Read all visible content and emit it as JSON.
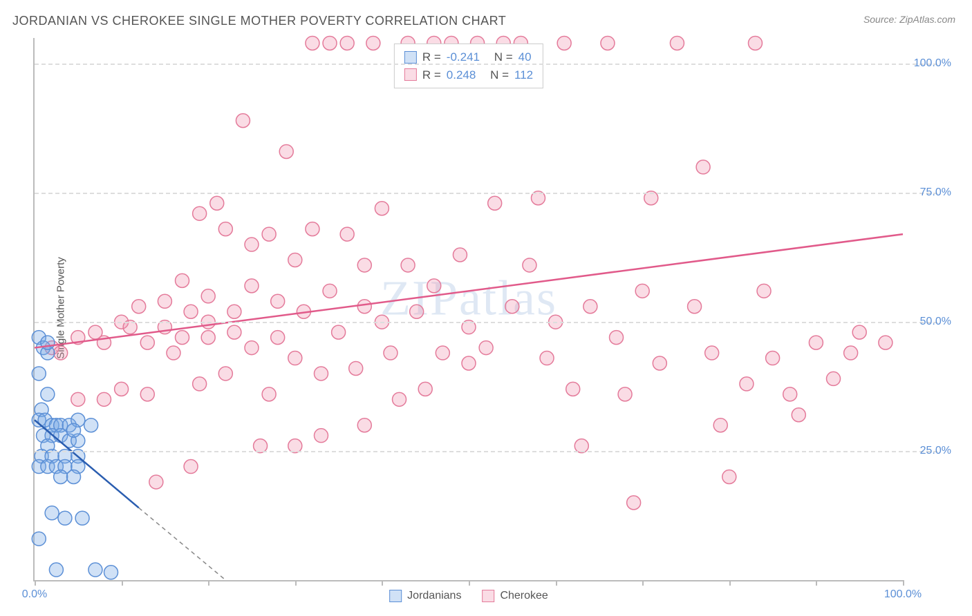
{
  "title": "JORDANIAN VS CHEROKEE SINGLE MOTHER POVERTY CORRELATION CHART",
  "source": "Source: ZipAtlas.com",
  "ylabel": "Single Mother Poverty",
  "watermark": "ZIPatlas",
  "chart": {
    "type": "scatter",
    "xlim": [
      0,
      100
    ],
    "ylim": [
      0,
      105
    ],
    "xticks": [
      0,
      10,
      20,
      30,
      40,
      50,
      60,
      70,
      80,
      90,
      100
    ],
    "xtick_labels": {
      "0": "0.0%",
      "100": "100.0%"
    },
    "yticks": [
      25,
      50,
      75,
      100
    ],
    "ytick_labels": [
      "25.0%",
      "50.0%",
      "75.0%",
      "100.0%"
    ],
    "background_color": "#ffffff",
    "grid_color": "#dddddd",
    "axis_color": "#bbbbbb",
    "tick_text_color": "#5b8fd6",
    "marker_radius": 10,
    "marker_stroke_width": 1.5,
    "line_width": 2.5
  },
  "series": {
    "jordanian": {
      "label": "Jordanians",
      "R": "-0.241",
      "N": "40",
      "fill": "rgba(120, 170, 230, 0.35)",
      "stroke": "#5b8fd6",
      "line_color": "#2a5db0",
      "trend": {
        "x1": 0,
        "y1": 31,
        "x2": 12,
        "y2": 14
      },
      "trend_ext": {
        "x1": 12,
        "y1": 14,
        "x2": 22,
        "y2": 0
      },
      "points": [
        [
          0.5,
          47
        ],
        [
          0.5,
          40
        ],
        [
          1,
          45
        ],
        [
          1.5,
          44
        ],
        [
          1.5,
          36
        ],
        [
          0.8,
          33
        ],
        [
          0.5,
          31
        ],
        [
          1.2,
          31
        ],
        [
          2.0,
          30
        ],
        [
          2.5,
          30
        ],
        [
          3.0,
          30
        ],
        [
          4.0,
          30
        ],
        [
          5.0,
          31
        ],
        [
          6.5,
          30
        ],
        [
          1.0,
          28
        ],
        [
          2.0,
          28
        ],
        [
          3.0,
          28
        ],
        [
          4.0,
          27
        ],
        [
          5.0,
          27
        ],
        [
          1.5,
          26
        ],
        [
          0.8,
          24
        ],
        [
          2.0,
          24
        ],
        [
          3.5,
          24
        ],
        [
          5.0,
          24
        ],
        [
          0.5,
          22
        ],
        [
          1.5,
          22
        ],
        [
          2.5,
          22
        ],
        [
          3.5,
          22
        ],
        [
          5.0,
          22
        ],
        [
          3.0,
          20
        ],
        [
          4.5,
          20
        ],
        [
          2.0,
          13
        ],
        [
          3.5,
          12
        ],
        [
          5.5,
          12
        ],
        [
          0.5,
          8
        ],
        [
          7.0,
          2
        ],
        [
          2.5,
          2
        ],
        [
          8.8,
          1.5
        ],
        [
          1.5,
          46
        ],
        [
          4.5,
          29
        ]
      ]
    },
    "cherokee": {
      "label": "Cherokee",
      "R": "0.248",
      "N": "112",
      "fill": "rgba(240, 140, 170, 0.3)",
      "stroke": "#e47a9a",
      "line_color": "#e15a8a",
      "trend": {
        "x1": 0,
        "y1": 45,
        "x2": 100,
        "y2": 67
      },
      "points": [
        [
          2,
          45
        ],
        [
          3,
          44
        ],
        [
          5,
          47
        ],
        [
          5,
          35
        ],
        [
          7,
          48
        ],
        [
          8,
          46
        ],
        [
          8,
          35
        ],
        [
          10,
          50
        ],
        [
          10,
          37
        ],
        [
          11,
          49
        ],
        [
          12,
          53
        ],
        [
          13,
          46
        ],
        [
          13,
          36
        ],
        [
          14,
          19
        ],
        [
          15,
          54
        ],
        [
          15,
          49
        ],
        [
          16,
          44
        ],
        [
          17,
          58
        ],
        [
          17,
          47
        ],
        [
          18,
          52
        ],
        [
          18,
          22
        ],
        [
          19,
          71
        ],
        [
          19,
          38
        ],
        [
          20,
          55
        ],
        [
          20,
          50
        ],
        [
          20,
          47
        ],
        [
          21,
          73
        ],
        [
          22,
          68
        ],
        [
          22,
          40
        ],
        [
          23,
          52
        ],
        [
          23,
          48
        ],
        [
          24,
          89
        ],
        [
          25,
          65
        ],
        [
          25,
          57
        ],
        [
          25,
          45
        ],
        [
          26,
          26
        ],
        [
          27,
          67
        ],
        [
          27,
          36
        ],
        [
          28,
          54
        ],
        [
          28,
          47
        ],
        [
          29,
          83
        ],
        [
          30,
          62
        ],
        [
          30,
          43
        ],
        [
          30,
          26
        ],
        [
          31,
          52
        ],
        [
          32,
          104
        ],
        [
          32,
          68
        ],
        [
          33,
          40
        ],
        [
          33,
          28
        ],
        [
          34,
          104
        ],
        [
          34,
          56
        ],
        [
          35,
          48
        ],
        [
          36,
          104
        ],
        [
          36,
          67
        ],
        [
          37,
          41
        ],
        [
          38,
          61
        ],
        [
          38,
          53
        ],
        [
          38,
          30
        ],
        [
          39,
          104
        ],
        [
          40,
          50
        ],
        [
          40,
          72
        ],
        [
          41,
          44
        ],
        [
          42,
          35
        ],
        [
          43,
          104
        ],
        [
          43,
          61
        ],
        [
          44,
          52
        ],
        [
          45,
          37
        ],
        [
          46,
          104
        ],
        [
          46,
          57
        ],
        [
          47,
          44
        ],
        [
          48,
          104
        ],
        [
          49,
          63
        ],
        [
          50,
          49
        ],
        [
          50,
          42
        ],
        [
          51,
          104
        ],
        [
          52,
          45
        ],
        [
          53,
          73
        ],
        [
          54,
          104
        ],
        [
          55,
          53
        ],
        [
          56,
          104
        ],
        [
          57,
          61
        ],
        [
          58,
          74
        ],
        [
          59,
          43
        ],
        [
          60,
          50
        ],
        [
          61,
          104
        ],
        [
          62,
          37
        ],
        [
          63,
          26
        ],
        [
          64,
          53
        ],
        [
          66,
          104
        ],
        [
          67,
          47
        ],
        [
          68,
          36
        ],
        [
          69,
          15
        ],
        [
          70,
          56
        ],
        [
          71,
          74
        ],
        [
          72,
          42
        ],
        [
          74,
          104
        ],
        [
          76,
          53
        ],
        [
          77,
          80
        ],
        [
          78,
          44
        ],
        [
          79,
          30
        ],
        [
          80,
          20
        ],
        [
          82,
          38
        ],
        [
          83,
          104
        ],
        [
          85,
          43
        ],
        [
          87,
          36
        ],
        [
          88,
          32
        ],
        [
          90,
          46
        ],
        [
          92,
          39
        ],
        [
          94,
          44
        ],
        [
          95,
          48
        ],
        [
          98,
          46
        ],
        [
          84,
          56
        ]
      ]
    }
  },
  "legend_top_template": {
    "R_label": "R =",
    "N_label": "N ="
  },
  "legend_bottom": [
    "jordanian",
    "cherokee"
  ]
}
